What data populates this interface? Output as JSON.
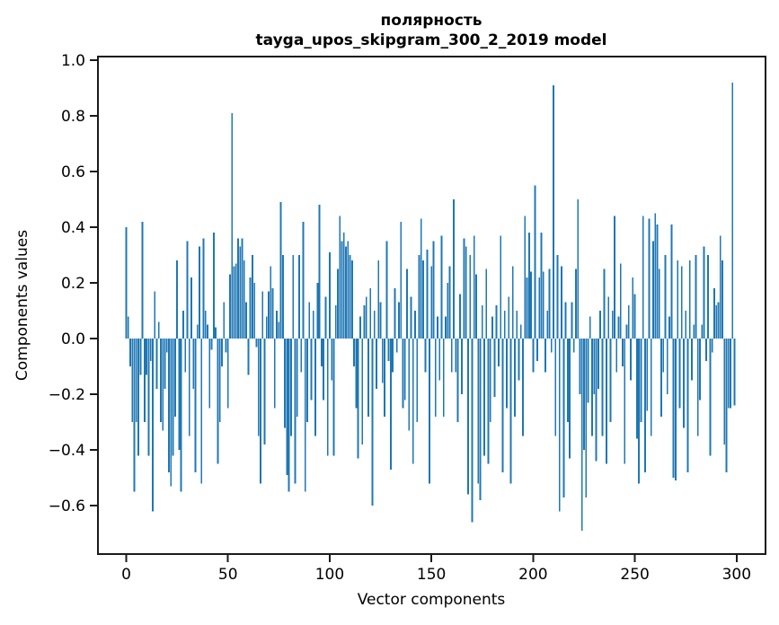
{
  "chart_data": {
    "type": "bar",
    "title": "полярность",
    "subtitle": "tayga_upos_skipgram_300_2_2019 model",
    "xlabel": "Vector components",
    "ylabel": "Components values",
    "bar_color": "#1f77b4",
    "axis_color": "#1a1a1a",
    "grid": false,
    "legend": "none",
    "xlim": [
      -14.35,
      314.65
    ],
    "ylim": [
      -0.777,
      1.016
    ],
    "xticks": [
      0,
      50,
      100,
      150,
      200,
      250,
      300
    ],
    "xtick_labels": [
      "0",
      "50",
      "100",
      "150",
      "200",
      "250",
      "300"
    ],
    "yticks": [
      1.0,
      0.8,
      0.6,
      0.4,
      0.2,
      0.0,
      -0.2,
      -0.4,
      -0.6
    ],
    "ytick_labels": [
      "1.0",
      "0.8",
      "0.6",
      "0.4",
      "0.2",
      "0.0",
      "−0.2",
      "−0.4",
      "−0.6"
    ],
    "n_bars": 300,
    "values": [
      0.4,
      0.08,
      -0.1,
      -0.3,
      -0.55,
      -0.3,
      -0.42,
      -0.13,
      0.42,
      -0.3,
      -0.13,
      -0.42,
      -0.08,
      -0.62,
      0.17,
      -0.18,
      0.06,
      -0.3,
      -0.33,
      -0.18,
      -0.05,
      -0.48,
      -0.53,
      -0.42,
      -0.28,
      0.28,
      -0.4,
      -0.55,
      0.1,
      -0.12,
      0.35,
      -0.35,
      0.22,
      -0.18,
      -0.48,
      0.05,
      0.33,
      -0.52,
      0.36,
      0.1,
      0.05,
      -0.25,
      -0.04,
      0.38,
      0.04,
      -0.45,
      -0.3,
      -0.1,
      0.13,
      -0.05,
      -0.25,
      0.23,
      0.81,
      0.26,
      0.27,
      0.36,
      0.33,
      0.36,
      0.28,
      0.13,
      -0.13,
      0.22,
      0.3,
      0.2,
      -0.03,
      -0.35,
      -0.52,
      0.17,
      -0.38,
      0.08,
      0.17,
      0.26,
      0.18,
      -0.25,
      0.1,
      0.06,
      0.49,
      0.3,
      -0.32,
      -0.49,
      -0.55,
      -0.35,
      0.3,
      -0.52,
      -0.28,
      0.3,
      -0.12,
      0.42,
      -0.55,
      -0.3,
      0.13,
      -0.22,
      0.1,
      -0.35,
      0.2,
      0.48,
      -0.1,
      -0.22,
      0.15,
      -0.42,
      0.31,
      -0.15,
      -0.42,
      0.12,
      0.25,
      0.44,
      0.35,
      0.38,
      0.33,
      0.35,
      0.3,
      0.28,
      -0.1,
      -0.25,
      -0.43,
      0.08,
      -0.38,
      0.12,
      0.15,
      -0.28,
      0.18,
      -0.6,
      0.1,
      -0.18,
      0.28,
      0.13,
      -0.16,
      -0.28,
      0.35,
      -0.08,
      -0.47,
      -0.12,
      0.18,
      -0.05,
      0.13,
      0.42,
      -0.25,
      -0.22,
      0.25,
      -0.33,
      0.15,
      -0.45,
      0.1,
      -0.3,
      0.3,
      0.43,
      0.28,
      -0.12,
      0.32,
      -0.52,
      0.26,
      0.35,
      -0.28,
      0.08,
      -0.15,
      0.37,
      -0.28,
      0.08,
      0.2,
      0.26,
      -0.12,
      0.5,
      -0.12,
      -0.3,
      0.16,
      -0.2,
      0.36,
      0.33,
      -0.56,
      0.3,
      -0.66,
      0.37,
      0.23,
      -0.52,
      -0.58,
      0.12,
      -0.42,
      0.25,
      -0.45,
      -0.3,
      0.08,
      -0.21,
      0.12,
      -0.1,
      0.37,
      -0.48,
      0.1,
      -0.25,
      0.15,
      -0.52,
      0.26,
      -0.28,
      0.1,
      -0.15,
      0.05,
      -0.35,
      0.44,
      0.22,
      0.38,
      0.24,
      -0.12,
      0.55,
      -0.08,
      0.22,
      0.38,
      0.24,
      -0.12,
      0.1,
      0.25,
      -0.05,
      0.91,
      -0.35,
      0.3,
      -0.62,
      0.26,
      -0.57,
      0.13,
      -0.3,
      -0.43,
      0.13,
      -0.05,
      0.25,
      0.5,
      -0.2,
      -0.69,
      -0.4,
      -0.57,
      -0.23,
      0.08,
      -0.35,
      -0.2,
      -0.44,
      -0.18,
      0.1,
      -0.35,
      0.25,
      -0.45,
      0.15,
      -0.3,
      0.1,
      0.44,
      -0.12,
      0.08,
      0.27,
      -0.1,
      -0.45,
      0.05,
      0.12,
      -0.15,
      0.22,
      0.16,
      -0.36,
      -0.52,
      -0.3,
      0.44,
      -0.48,
      -0.26,
      0.43,
      -0.35,
      0.35,
      0.45,
      0.41,
      0.25,
      -0.28,
      -0.12,
      0.3,
      -0.2,
      0.08,
      0.41,
      -0.5,
      -0.51,
      0.28,
      -0.25,
      0.26,
      -0.32,
      0.1,
      -0.48,
      0.28,
      -0.15,
      0.05,
      0.3,
      -0.35,
      -0.22,
      0.05,
      0.33,
      -0.08,
      0.3,
      -0.42,
      -0.05,
      0.18,
      0.12,
      0.13,
      0.37,
      0.28,
      -0.38,
      -0.48,
      -0.25,
      -0.25,
      0.92,
      -0.24
    ]
  }
}
